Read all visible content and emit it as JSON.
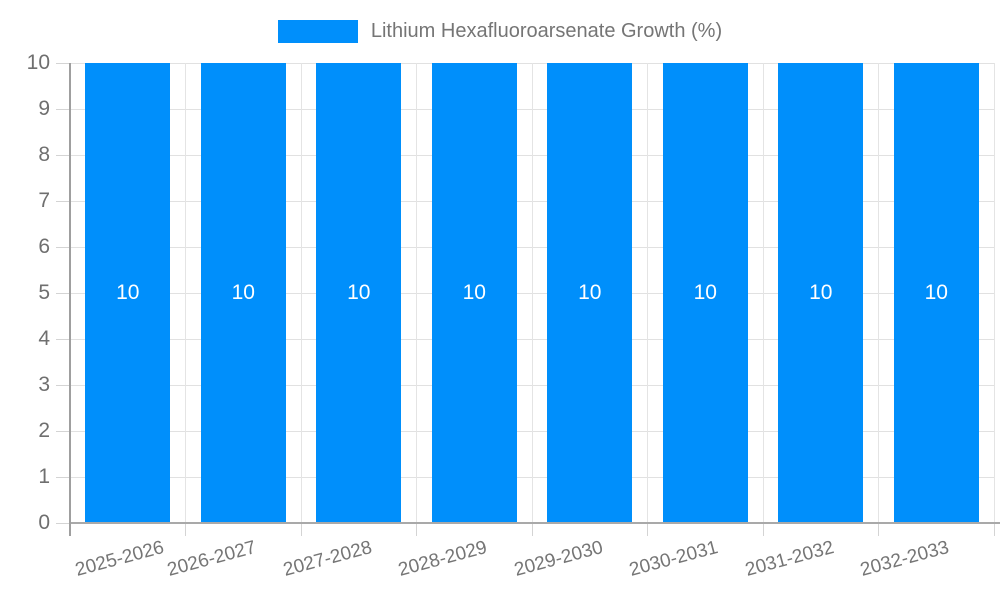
{
  "legend": {
    "label": "Lithium Hexafluoroarsenate Growth (%)"
  },
  "chart_data": {
    "type": "bar",
    "title": "Lithium Hexafluoroarsenate Growth (%)",
    "categories": [
      "2025-2026",
      "2026-2027",
      "2027-2028",
      "2028-2029",
      "2029-2030",
      "2030-2031",
      "2031-2032",
      "2032-2033"
    ],
    "values": [
      10,
      10,
      10,
      10,
      10,
      10,
      10,
      10
    ],
    "data_labels": [
      "10",
      "10",
      "10",
      "10",
      "10",
      "10",
      "10",
      "10"
    ],
    "xlabel": "",
    "ylabel": "",
    "ylim": [
      0,
      10
    ],
    "y_ticks": [
      0,
      1,
      2,
      3,
      4,
      5,
      6,
      7,
      8,
      9,
      10
    ],
    "grid": true,
    "legend_position": "top",
    "x_label_rotation_deg": -15
  },
  "colors": {
    "bar": "#008FFB",
    "grid": "#e1e1e1",
    "axis": "#a9a9a9",
    "tick": "#d4d4d4",
    "y_axis_line": "#9f9f9f",
    "label": "#6f6f6f",
    "x_label": "#757575",
    "legend_label": "#757575",
    "value_label": "#ffffff",
    "background": "#ffffff"
  }
}
